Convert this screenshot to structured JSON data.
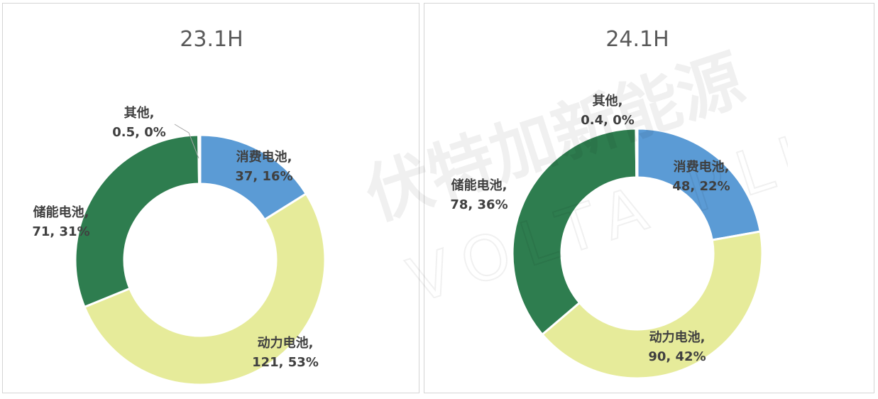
{
  "chart_data": [
    {
      "type": "pie",
      "title": "23.1H",
      "donut": true,
      "slices": [
        {
          "name": "消费电池",
          "value": 37,
          "pct": "16%",
          "color": "#5b9bd5"
        },
        {
          "name": "动力电池",
          "value": 121,
          "pct": "53%",
          "color": "#e6eb9a"
        },
        {
          "name": "储能电池",
          "value": 71,
          "pct": "31%",
          "color": "#2e7d4f"
        },
        {
          "name": "其他",
          "value": 0.5,
          "pct": "0%",
          "color": "#ffffff"
        }
      ]
    },
    {
      "type": "pie",
      "title": "24.1H",
      "donut": true,
      "slices": [
        {
          "name": "消费电池",
          "value": 48,
          "pct": "22%",
          "color": "#5b9bd5"
        },
        {
          "name": "动力电池",
          "value": 90,
          "pct": "42%",
          "color": "#e6eb9a"
        },
        {
          "name": "储能电池",
          "value": 78,
          "pct": "36%",
          "color": "#2e7d4f"
        },
        {
          "name": "其他",
          "value": 0.4,
          "pct": "0%",
          "color": "#ffffff"
        }
      ]
    }
  ],
  "watermark": {
    "cn": "伏特加新能源",
    "en": "VOLTA PLUS"
  }
}
